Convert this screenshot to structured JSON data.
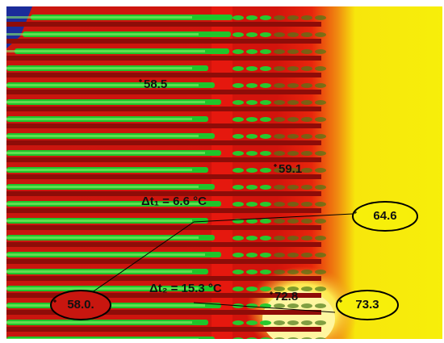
{
  "labels": {
    "spot_a": "58.5",
    "spot_b": "59.1",
    "spot_c": "72.8"
  },
  "callouts": [
    {
      "label": "64.6"
    },
    {
      "label": "58.0."
    },
    {
      "label": "73.3"
    }
  ],
  "differences": [
    {
      "label": "Δt₁ = 6.6 °C"
    },
    {
      "label": "Δt₂ = 15.3 °C"
    }
  ]
}
